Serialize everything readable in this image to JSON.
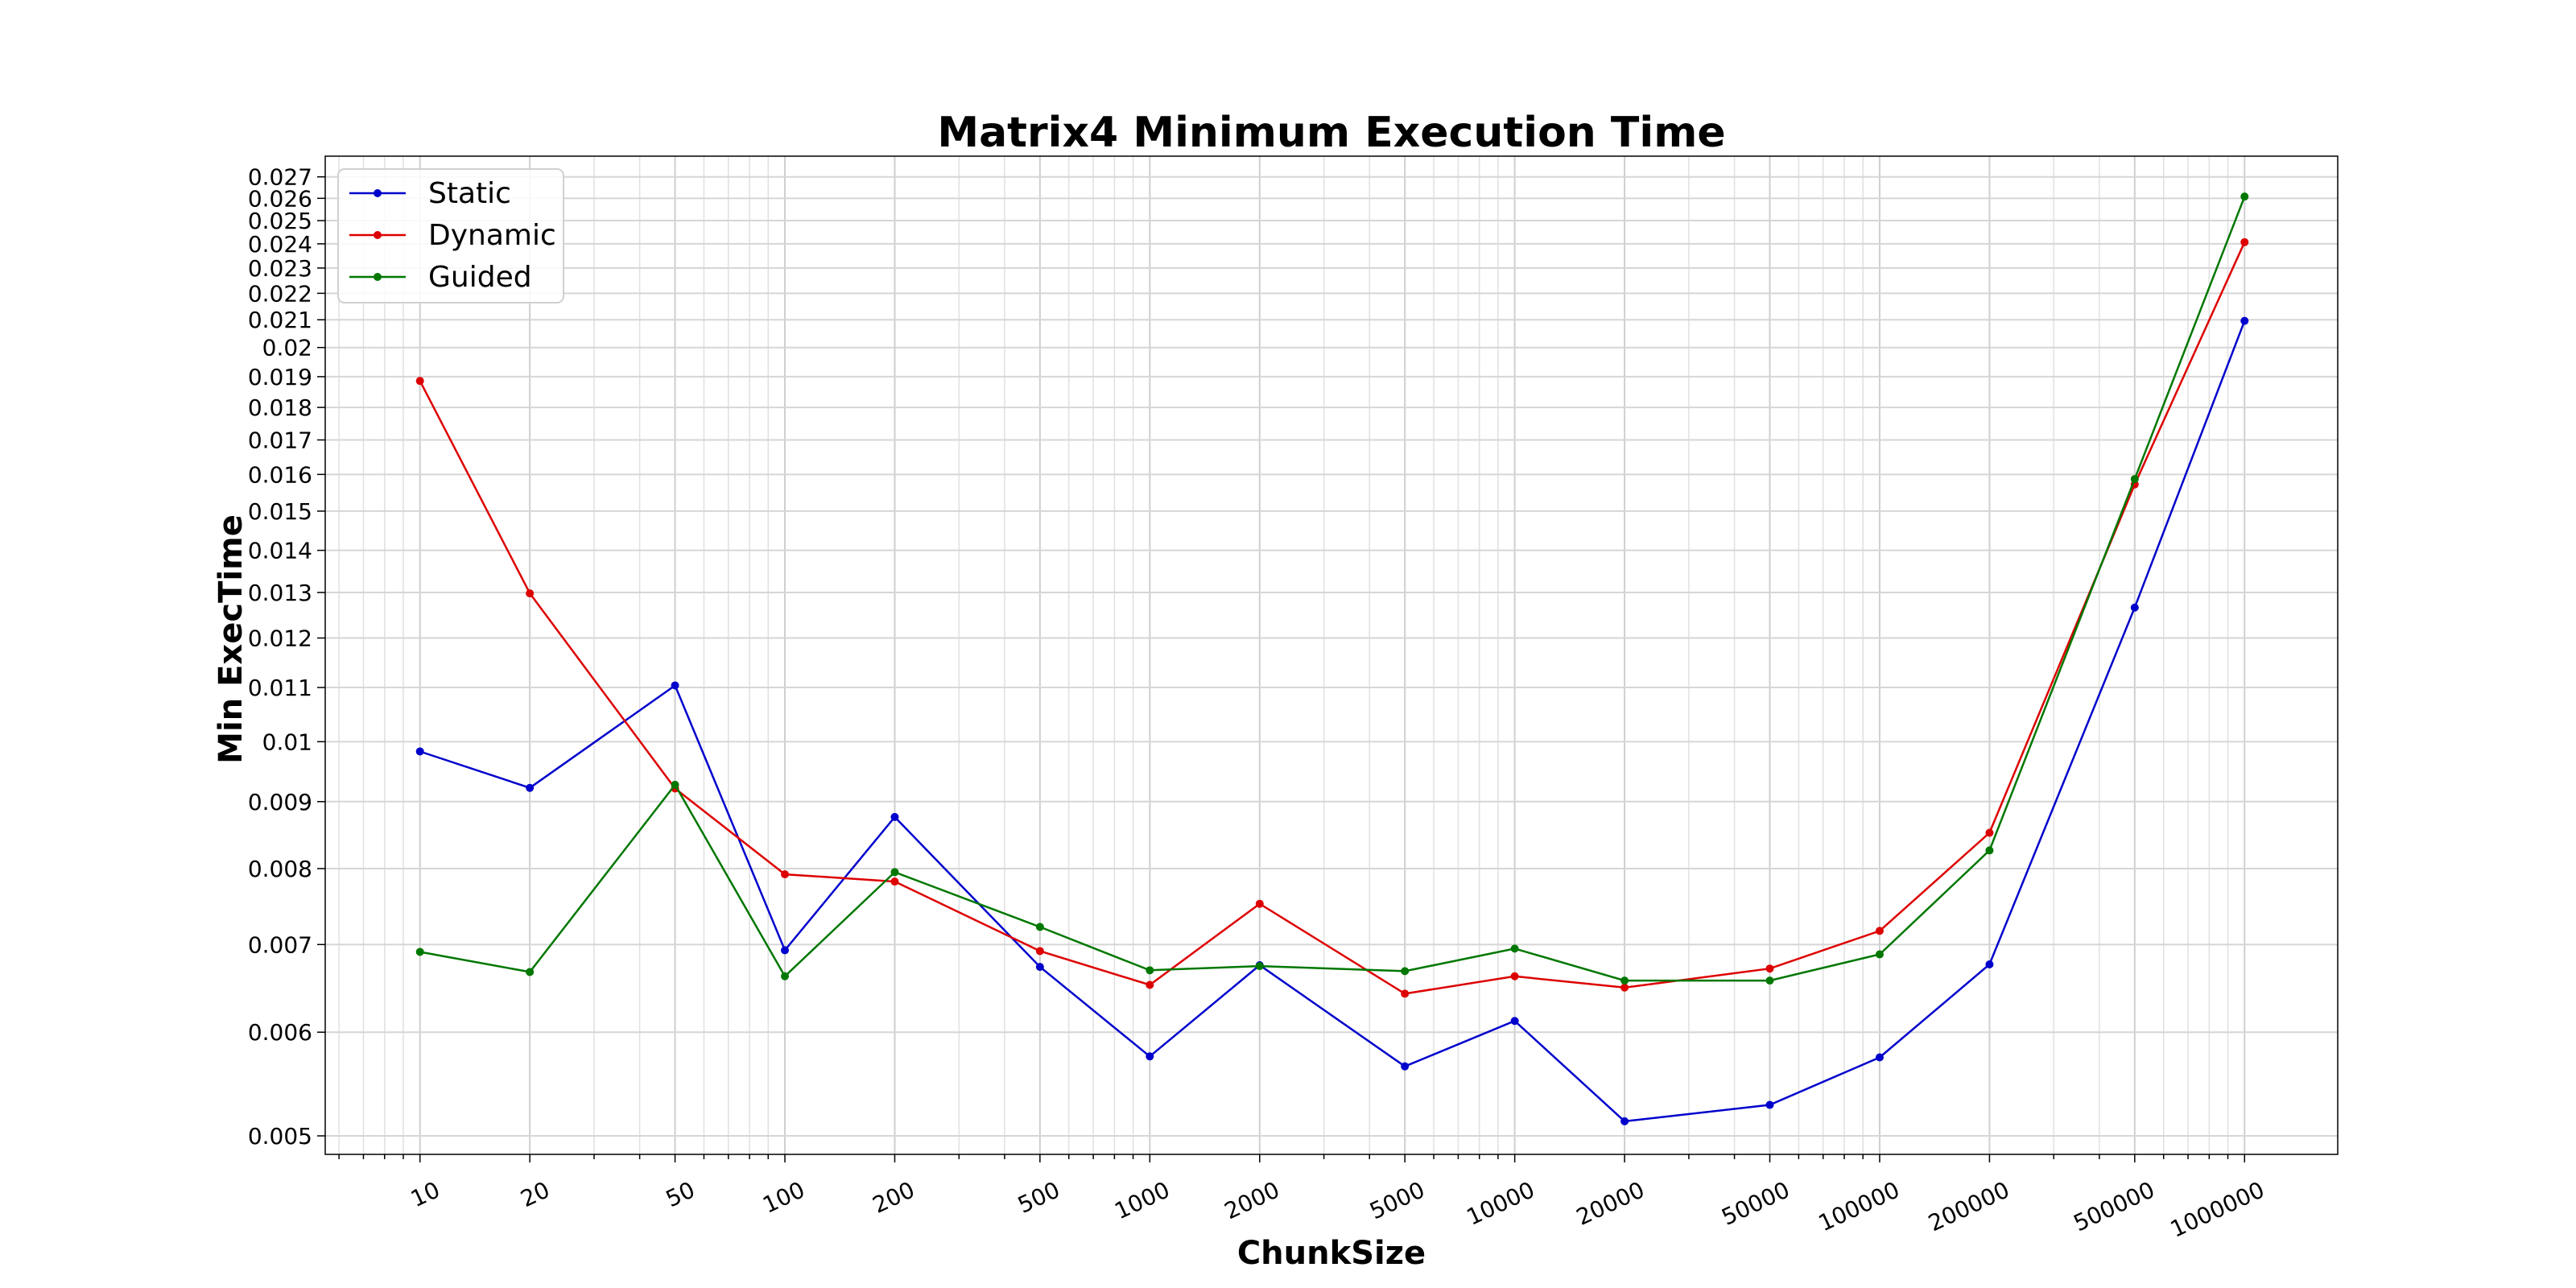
{
  "chart_data": {
    "type": "line",
    "title": "Matrix4 Minimum Execution Time",
    "xlabel": "ChunkSize",
    "ylabel": "Min ExecTime",
    "x_scale": "log",
    "y_scale": "log",
    "xlim": [
      5.5,
      1800000
    ],
    "ylim": [
      0.00484,
      0.028
    ],
    "grid": true,
    "legend_position": "top-left",
    "x": [
      10,
      20,
      50,
      100,
      200,
      500,
      1000,
      2000,
      5000,
      10000,
      20000,
      50000,
      100000,
      200000,
      500000,
      1000000
    ],
    "x_tick_labels": [
      "10",
      "20",
      "50",
      "100",
      "200",
      "500",
      "1000",
      "2000",
      "5000",
      "10000",
      "20000",
      "50000",
      "100000",
      "200000",
      "500000",
      "1000000"
    ],
    "y_ticks": [
      0.005,
      0.006,
      0.007,
      0.008,
      0.009,
      0.01,
      0.011,
      0.012,
      0.013,
      0.014,
      0.015,
      0.016,
      0.017,
      0.018,
      0.019,
      0.02,
      0.021,
      0.022,
      0.023,
      0.024,
      0.025,
      0.026,
      0.027
    ],
    "y_tick_labels": [
      "0.005",
      "0.006",
      "0.007",
      "0.008",
      "0.009",
      "0.01",
      "0.011",
      "0.012",
      "0.013",
      "0.014",
      "0.015",
      "0.016",
      "0.017",
      "0.018",
      "0.019",
      "0.02",
      "0.021",
      "0.022",
      "0.023",
      "0.024",
      "0.025",
      "0.026",
      "0.027"
    ],
    "series": [
      {
        "name": "Static",
        "color": "#0000cc",
        "values": [
          0.00983,
          0.00922,
          0.01104,
          0.00693,
          0.00876,
          0.00673,
          0.00575,
          0.00675,
          0.00565,
          0.00612,
          0.00513,
          0.00528,
          0.00574,
          0.00676,
          0.01266,
          0.02096
        ]
      },
      {
        "name": "Dynamic",
        "color": "#dd0000",
        "values": [
          0.01886,
          0.01298,
          0.00921,
          0.00792,
          0.00782,
          0.00692,
          0.00652,
          0.00752,
          0.00642,
          0.00662,
          0.00649,
          0.00671,
          0.00717,
          0.00852,
          0.01572,
          0.02407
        ]
      },
      {
        "name": "Guided",
        "color": "#007700",
        "values": [
          0.00691,
          0.00667,
          0.00927,
          0.00662,
          0.00795,
          0.00722,
          0.00669,
          0.00674,
          0.00668,
          0.00695,
          0.00657,
          0.00657,
          0.00688,
          0.00826,
          0.01587,
          0.02608
        ]
      }
    ]
  }
}
